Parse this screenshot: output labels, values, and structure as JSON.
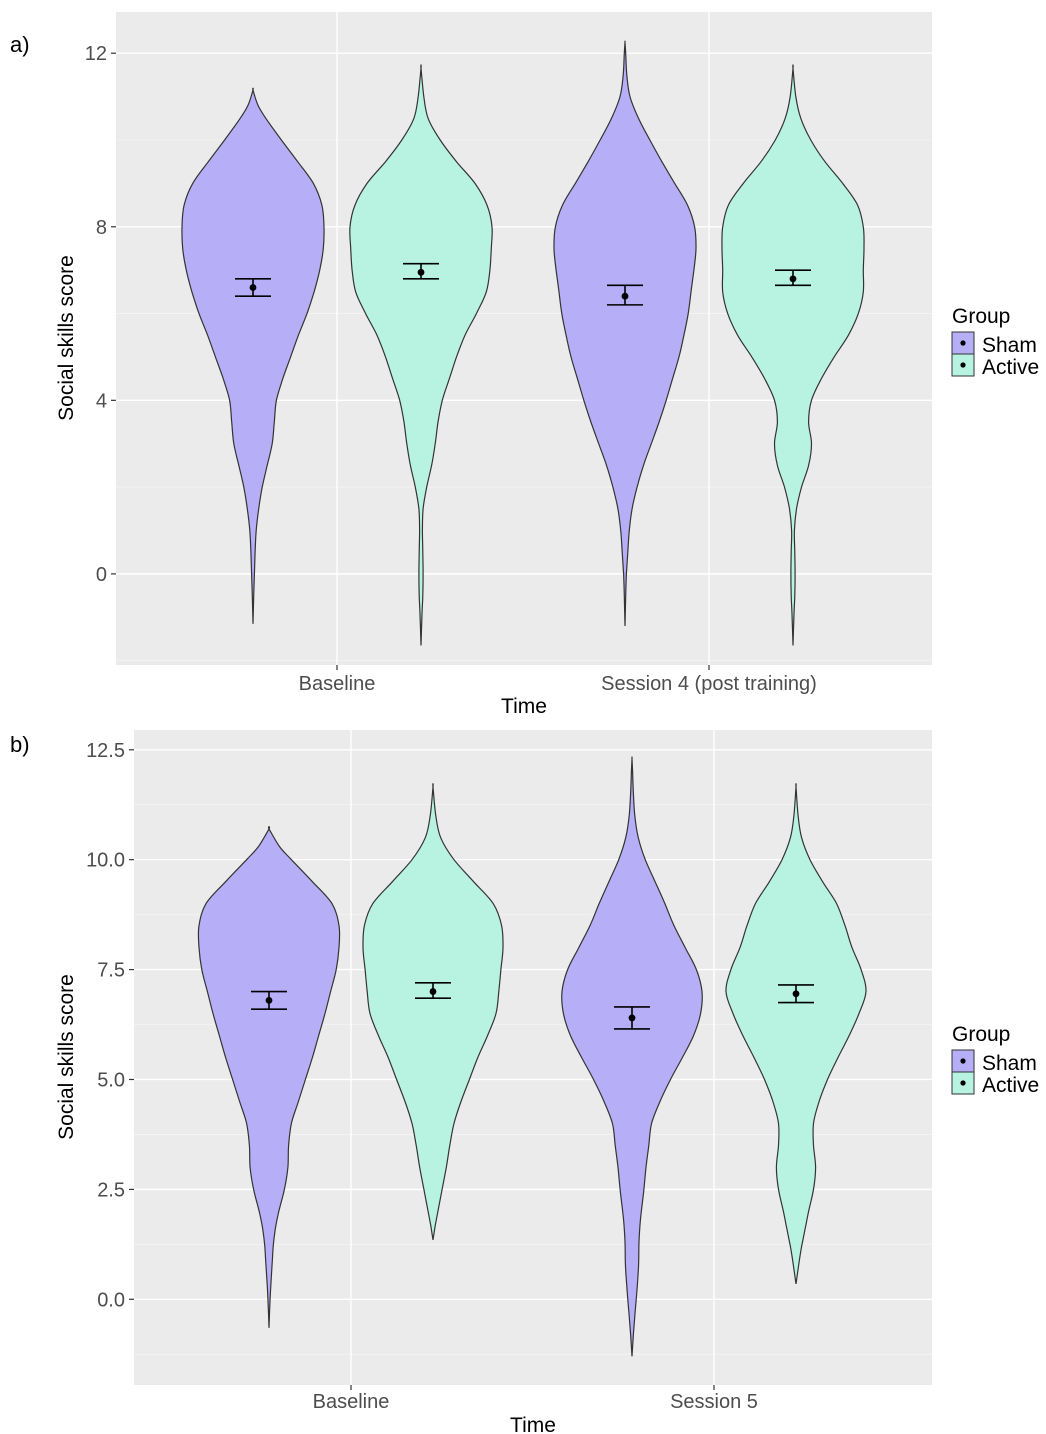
{
  "legend": {
    "title": "Group",
    "entries": [
      {
        "label": "Sham",
        "color": "#b6aef6"
      },
      {
        "label": "Active",
        "color": "#b8f3e2"
      }
    ]
  },
  "chart_data": [
    {
      "panel_label": "a)",
      "type": "violin",
      "xlabel": "Time",
      "ylabel": "Social skills score",
      "categories": [
        "Baseline",
        "Session 4 (post training)"
      ],
      "y_ticks": [
        0,
        4,
        8,
        12
      ],
      "y_tick_labels": [
        "0",
        "4",
        "8",
        "12"
      ],
      "ylim": [
        -2.1,
        12.95
      ],
      "grid": true,
      "legend_position": "right",
      "series": [
        {
          "name": "Sham",
          "color": "#b6aef6",
          "stats": [
            {
              "category": "Baseline",
              "mean": 6.6,
              "err_low": 6.4,
              "err_high": 6.8,
              "min": -1.15,
              "max": 11.15
            },
            {
              "category": "Session 4 (post training)",
              "mean": 6.4,
              "err_low": 6.2,
              "err_high": 6.65,
              "min": -1.2,
              "max": 12.25
            }
          ],
          "density": [
            [
              [
                -1.15,
                0.0
              ],
              [
                -0.5,
                0.01
              ],
              [
                0.0,
                0.02
              ],
              [
                0.5,
                0.03
              ],
              [
                1.0,
                0.045
              ],
              [
                1.5,
                0.08
              ],
              [
                2.0,
                0.13
              ],
              [
                2.5,
                0.2
              ],
              [
                3.0,
                0.27
              ],
              [
                3.5,
                0.3
              ],
              [
                4.0,
                0.33
              ],
              [
                4.5,
                0.42
              ],
              [
                5.0,
                0.53
              ],
              [
                5.5,
                0.64
              ],
              [
                6.0,
                0.76
              ],
              [
                6.5,
                0.86
              ],
              [
                7.0,
                0.94
              ],
              [
                7.5,
                0.99
              ],
              [
                8.0,
                1.0
              ],
              [
                8.5,
                0.97
              ],
              [
                9.0,
                0.85
              ],
              [
                9.5,
                0.63
              ],
              [
                10.0,
                0.4
              ],
              [
                10.5,
                0.18
              ],
              [
                10.8,
                0.07
              ],
              [
                11.15,
                0.0
              ]
            ],
            [
              [
                -1.2,
                0.0
              ],
              [
                -0.5,
                0.01
              ],
              [
                0.0,
                0.02
              ],
              [
                0.5,
                0.04
              ],
              [
                1.0,
                0.06
              ],
              [
                1.5,
                0.1
              ],
              [
                2.0,
                0.17
              ],
              [
                2.5,
                0.26
              ],
              [
                3.0,
                0.37
              ],
              [
                3.5,
                0.48
              ],
              [
                4.0,
                0.58
              ],
              [
                4.5,
                0.67
              ],
              [
                5.0,
                0.76
              ],
              [
                5.5,
                0.83
              ],
              [
                6.0,
                0.89
              ],
              [
                6.5,
                0.93
              ],
              [
                7.0,
                0.97
              ],
              [
                7.5,
                1.0
              ],
              [
                8.0,
                0.98
              ],
              [
                8.5,
                0.88
              ],
              [
                9.0,
                0.7
              ],
              [
                9.5,
                0.52
              ],
              [
                10.0,
                0.35
              ],
              [
                10.5,
                0.19
              ],
              [
                11.0,
                0.07
              ],
              [
                11.5,
                0.025
              ],
              [
                12.0,
                0.01
              ],
              [
                12.25,
                0.0
              ]
            ]
          ]
        },
        {
          "name": "Active",
          "color": "#b8f3e2",
          "stats": [
            {
              "category": "Baseline",
              "mean": 6.95,
              "err_low": 6.8,
              "err_high": 7.15,
              "min": -1.65,
              "max": 11.65
            },
            {
              "category": "Session 4 (post training)",
              "mean": 6.8,
              "err_low": 6.65,
              "err_high": 7.0,
              "min": -1.65,
              "max": 11.65
            }
          ],
          "density": [
            [
              [
                -1.65,
                0.0
              ],
              [
                -1.0,
                0.012
              ],
              [
                -0.5,
                0.025
              ],
              [
                0.0,
                0.03
              ],
              [
                0.5,
                0.025
              ],
              [
                1.0,
                0.02
              ],
              [
                1.5,
                0.03
              ],
              [
                2.0,
                0.08
              ],
              [
                2.5,
                0.15
              ],
              [
                3.0,
                0.2
              ],
              [
                3.5,
                0.24
              ],
              [
                4.0,
                0.3
              ],
              [
                4.5,
                0.4
              ],
              [
                5.0,
                0.5
              ],
              [
                5.5,
                0.62
              ],
              [
                6.0,
                0.78
              ],
              [
                6.5,
                0.92
              ],
              [
                7.0,
                0.97
              ],
              [
                7.5,
                0.99
              ],
              [
                8.0,
                1.0
              ],
              [
                8.5,
                0.93
              ],
              [
                9.0,
                0.76
              ],
              [
                9.5,
                0.5
              ],
              [
                10.0,
                0.27
              ],
              [
                10.5,
                0.1
              ],
              [
                11.0,
                0.04
              ],
              [
                11.65,
                0.0
              ]
            ],
            [
              [
                -1.65,
                0.0
              ],
              [
                -1.0,
                0.012
              ],
              [
                -0.5,
                0.025
              ],
              [
                0.0,
                0.03
              ],
              [
                0.5,
                0.025
              ],
              [
                1.0,
                0.02
              ],
              [
                1.5,
                0.05
              ],
              [
                2.0,
                0.12
              ],
              [
                2.5,
                0.22
              ],
              [
                3.0,
                0.26
              ],
              [
                3.5,
                0.22
              ],
              [
                4.0,
                0.26
              ],
              [
                4.5,
                0.4
              ],
              [
                5.0,
                0.58
              ],
              [
                5.5,
                0.78
              ],
              [
                6.0,
                0.92
              ],
              [
                6.5,
                0.99
              ],
              [
                7.0,
                0.99
              ],
              [
                7.5,
                1.0
              ],
              [
                8.0,
                0.99
              ],
              [
                8.5,
                0.91
              ],
              [
                9.0,
                0.7
              ],
              [
                9.5,
                0.45
              ],
              [
                10.0,
                0.25
              ],
              [
                10.5,
                0.11
              ],
              [
                11.0,
                0.04
              ],
              [
                11.65,
                0.0
              ]
            ]
          ]
        }
      ]
    },
    {
      "panel_label": "b)",
      "type": "violin",
      "xlabel": "Time",
      "ylabel": "Social skills score",
      "categories": [
        "Baseline",
        "Session 5"
      ],
      "y_ticks": [
        0,
        2.5,
        5,
        7.5,
        10,
        12.5
      ],
      "y_tick_labels": [
        "0.0",
        "2.5",
        "5.0",
        "7.5",
        "10.0",
        "12.5"
      ],
      "ylim": [
        -1.95,
        12.95
      ],
      "grid": true,
      "legend_position": "right",
      "series": [
        {
          "name": "Sham",
          "color": "#b6aef6",
          "stats": [
            {
              "category": "Baseline",
              "mean": 6.8,
              "err_low": 6.6,
              "err_high": 7.0,
              "min": -0.65,
              "max": 10.7
            },
            {
              "category": "Session 5",
              "mean": 6.4,
              "err_low": 6.15,
              "err_high": 6.65,
              "min": -1.3,
              "max": 12.3
            }
          ],
          "density": [
            [
              [
                -0.65,
                0.0
              ],
              [
                -0.2,
                0.01
              ],
              [
                0.3,
                0.025
              ],
              [
                0.8,
                0.045
              ],
              [
                1.2,
                0.06
              ],
              [
                1.6,
                0.09
              ],
              [
                2.0,
                0.14
              ],
              [
                2.5,
                0.22
              ],
              [
                3.0,
                0.27
              ],
              [
                3.5,
                0.28
              ],
              [
                4.0,
                0.32
              ],
              [
                4.5,
                0.42
              ],
              [
                5.0,
                0.52
              ],
              [
                5.5,
                0.62
              ],
              [
                6.0,
                0.71
              ],
              [
                6.5,
                0.8
              ],
              [
                7.0,
                0.88
              ],
              [
                7.5,
                0.96
              ],
              [
                8.0,
                1.0
              ],
              [
                8.5,
                1.0
              ],
              [
                9.0,
                0.9
              ],
              [
                9.5,
                0.62
              ],
              [
                10.0,
                0.32
              ],
              [
                10.3,
                0.15
              ],
              [
                10.7,
                0.0
              ]
            ],
            [
              [
                -1.3,
                0.0
              ],
              [
                -0.8,
                0.02
              ],
              [
                -0.3,
                0.045
              ],
              [
                0.3,
                0.075
              ],
              [
                0.8,
                0.095
              ],
              [
                1.3,
                0.1
              ],
              [
                1.8,
                0.12
              ],
              [
                2.5,
                0.17
              ],
              [
                3.0,
                0.2
              ],
              [
                3.5,
                0.24
              ],
              [
                4.0,
                0.28
              ],
              [
                4.5,
                0.4
              ],
              [
                5.0,
                0.55
              ],
              [
                5.5,
                0.72
              ],
              [
                6.0,
                0.88
              ],
              [
                6.5,
                0.98
              ],
              [
                7.0,
                1.0
              ],
              [
                7.5,
                0.92
              ],
              [
                8.0,
                0.76
              ],
              [
                8.5,
                0.6
              ],
              [
                9.0,
                0.47
              ],
              [
                9.5,
                0.33
              ],
              [
                10.0,
                0.19
              ],
              [
                10.5,
                0.09
              ],
              [
                11.0,
                0.04
              ],
              [
                11.5,
                0.02
              ],
              [
                12.0,
                0.008
              ],
              [
                12.3,
                0.0
              ]
            ]
          ]
        },
        {
          "name": "Active",
          "color": "#b8f3e2",
          "stats": [
            {
              "category": "Baseline",
              "mean": 7.0,
              "err_low": 6.85,
              "err_high": 7.2,
              "min": 1.35,
              "max": 11.65
            },
            {
              "category": "Session 5",
              "mean": 6.95,
              "err_low": 6.75,
              "err_high": 7.15,
              "min": 0.35,
              "max": 11.65
            }
          ],
          "density": [
            [
              [
                1.35,
                0.0
              ],
              [
                1.7,
                0.035
              ],
              [
                2.0,
                0.07
              ],
              [
                2.5,
                0.13
              ],
              [
                3.0,
                0.19
              ],
              [
                3.5,
                0.24
              ],
              [
                4.0,
                0.3
              ],
              [
                4.5,
                0.4
              ],
              [
                5.0,
                0.52
              ],
              [
                5.5,
                0.64
              ],
              [
                6.0,
                0.78
              ],
              [
                6.5,
                0.9
              ],
              [
                7.0,
                0.94
              ],
              [
                7.5,
                0.97
              ],
              [
                8.0,
                1.0
              ],
              [
                8.5,
                0.98
              ],
              [
                9.0,
                0.86
              ],
              [
                9.5,
                0.58
              ],
              [
                10.0,
                0.3
              ],
              [
                10.5,
                0.11
              ],
              [
                11.0,
                0.04
              ],
              [
                11.65,
                0.0
              ]
            ],
            [
              [
                0.35,
                0.0
              ],
              [
                0.8,
                0.04
              ],
              [
                1.2,
                0.08
              ],
              [
                1.6,
                0.13
              ],
              [
                2.0,
                0.18
              ],
              [
                2.5,
                0.25
              ],
              [
                3.0,
                0.28
              ],
              [
                3.5,
                0.25
              ],
              [
                4.0,
                0.25
              ],
              [
                4.5,
                0.33
              ],
              [
                5.0,
                0.45
              ],
              [
                5.5,
                0.6
              ],
              [
                6.0,
                0.76
              ],
              [
                6.5,
                0.9
              ],
              [
                7.0,
                1.0
              ],
              [
                7.5,
                0.93
              ],
              [
                8.0,
                0.8
              ],
              [
                8.5,
                0.7
              ],
              [
                9.0,
                0.58
              ],
              [
                9.5,
                0.38
              ],
              [
                10.0,
                0.2
              ],
              [
                10.5,
                0.08
              ],
              [
                11.0,
                0.03
              ],
              [
                11.65,
                0.0
              ]
            ]
          ]
        }
      ]
    }
  ]
}
